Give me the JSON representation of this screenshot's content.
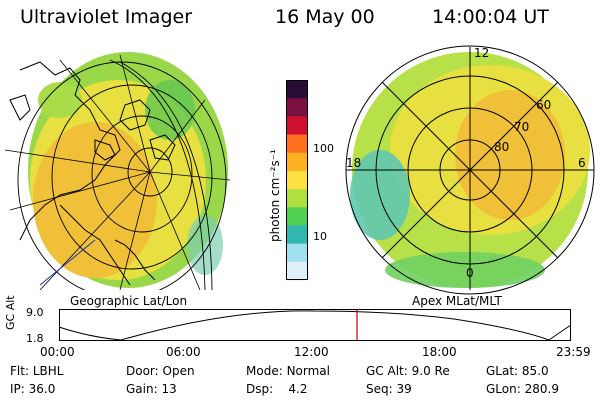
{
  "header": {
    "title": "Ultraviolet Imager",
    "date": "16 May 00",
    "time": "14:00:04 UT"
  },
  "left_map": {
    "caption": "Geographic Lat/Lon"
  },
  "right_map": {
    "caption": "Apex MLat/MLT",
    "lat_labels": [
      "80",
      "70",
      "60"
    ],
    "mlt_labels": {
      "top": "12",
      "left": "18",
      "right": "6",
      "bottom": "0"
    }
  },
  "colorbar": {
    "unit_label": "photon cm⁻²s⁻¹",
    "ticks": [
      "100",
      "10"
    ],
    "colors": [
      "#2a0a36",
      "#7a1040",
      "#d01030",
      "#ff7020",
      "#ffb020",
      "#ffe040",
      "#b0e040",
      "#50d050",
      "#30b8b0",
      "#a0e0f0",
      "#e0f0f8"
    ]
  },
  "timeline": {
    "axis_label": "GC Alt",
    "y_top": "9.0",
    "y_bottom": "1.8",
    "ticks": [
      "00:00",
      "06:00",
      "12:00",
      "18:00",
      "23:59"
    ],
    "current_time_color": "#cc0000"
  },
  "status": {
    "row1": [
      {
        "key": "Flt:",
        "value": "LBHL"
      },
      {
        "key": "Door:",
        "value": "Open"
      },
      {
        "key": "Mode:",
        "value": "Normal"
      },
      {
        "key": "GC Alt:",
        "value": "9.0 Re"
      },
      {
        "key": "GLat:",
        "value": "85.0"
      }
    ],
    "row2": [
      {
        "key": "IP:",
        "value": "36.0"
      },
      {
        "key": "Gain:",
        "value": "13"
      },
      {
        "key": "Dsp:",
        "value": "4.2"
      },
      {
        "key": "Seq:",
        "value": "39"
      },
      {
        "key": "GLon:",
        "value": "280.9"
      }
    ]
  }
}
